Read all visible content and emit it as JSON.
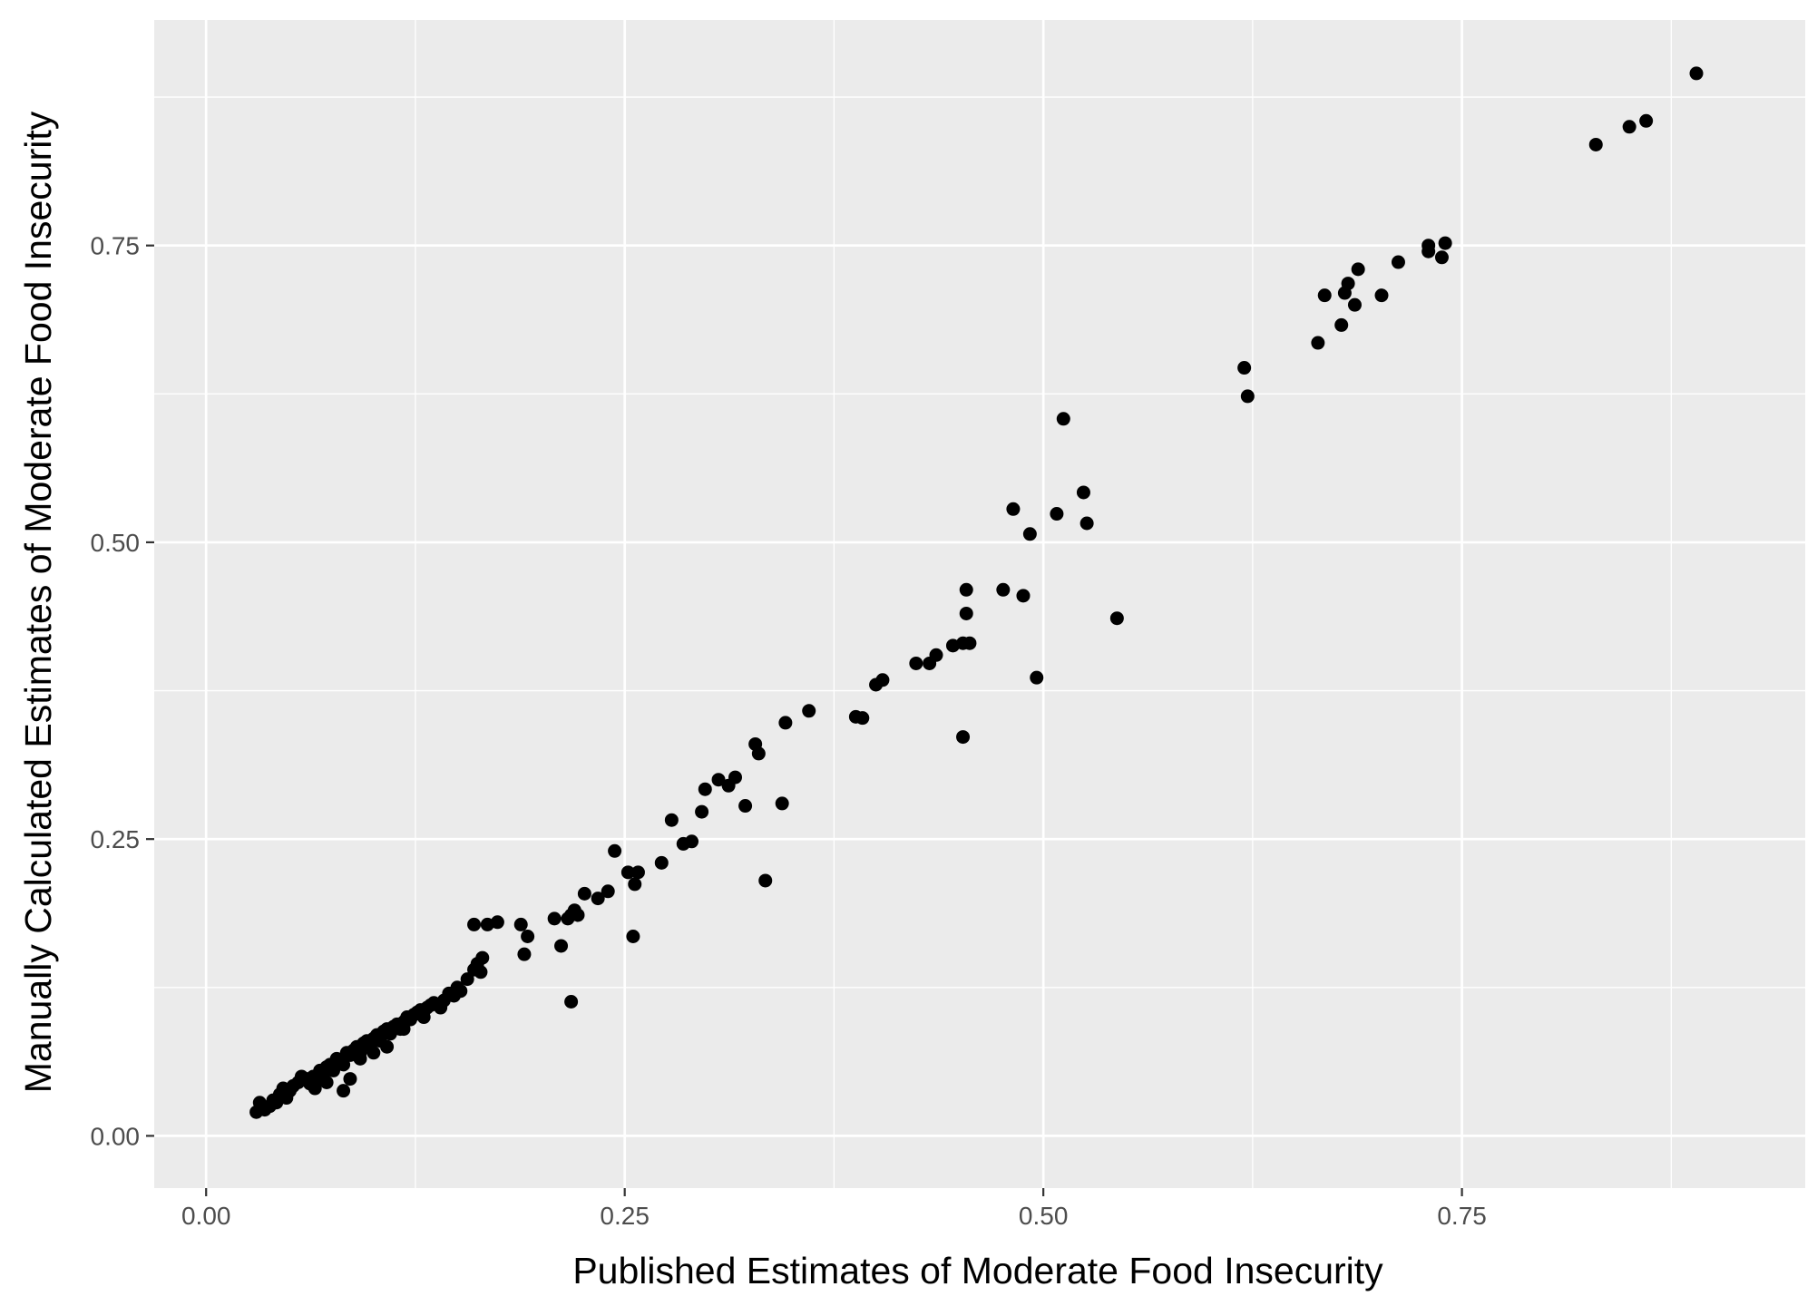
{
  "chart_data": {
    "type": "scatter",
    "xlabel": "Published Estimates of Moderate Food Insecurity",
    "ylabel": "Manually Calculated Estimates of Moderate Food Insecurity",
    "xlim": [
      -0.031,
      0.955
    ],
    "ylim": [
      -0.044,
      0.94
    ],
    "x_ticks": [
      0.0,
      0.25,
      0.5,
      0.75
    ],
    "x_tick_labels": [
      "0.00",
      "0.25",
      "0.50",
      "0.75"
    ],
    "y_ticks": [
      0.0,
      0.25,
      0.5,
      0.75
    ],
    "y_tick_labels": [
      "0.00",
      "0.25",
      "0.50",
      "0.75"
    ],
    "grid": true,
    "colors": {
      "panel": "#ebebeb",
      "grid": "#ffffff",
      "point": "#000000"
    },
    "points": [
      [
        0.03,
        0.02
      ],
      [
        0.032,
        0.028
      ],
      [
        0.035,
        0.022
      ],
      [
        0.038,
        0.025
      ],
      [
        0.04,
        0.03
      ],
      [
        0.042,
        0.028
      ],
      [
        0.044,
        0.035
      ],
      [
        0.046,
        0.04
      ],
      [
        0.048,
        0.032
      ],
      [
        0.05,
        0.038
      ],
      [
        0.052,
        0.042
      ],
      [
        0.055,
        0.045
      ],
      [
        0.057,
        0.05
      ],
      [
        0.06,
        0.048
      ],
      [
        0.062,
        0.044
      ],
      [
        0.064,
        0.05
      ],
      [
        0.066,
        0.046
      ],
      [
        0.068,
        0.055
      ],
      [
        0.07,
        0.052
      ],
      [
        0.072,
        0.058
      ],
      [
        0.074,
        0.06
      ],
      [
        0.076,
        0.055
      ],
      [
        0.078,
        0.065
      ],
      [
        0.08,
        0.062
      ],
      [
        0.082,
        0.06
      ],
      [
        0.084,
        0.07
      ],
      [
        0.086,
        0.068
      ],
      [
        0.088,
        0.072
      ],
      [
        0.09,
        0.075
      ],
      [
        0.092,
        0.07
      ],
      [
        0.094,
        0.078
      ],
      [
        0.096,
        0.08
      ],
      [
        0.098,
        0.076
      ],
      [
        0.1,
        0.082
      ],
      [
        0.102,
        0.085
      ],
      [
        0.104,
        0.08
      ],
      [
        0.106,
        0.088
      ],
      [
        0.108,
        0.09
      ],
      [
        0.11,
        0.086
      ],
      [
        0.112,
        0.092
      ],
      [
        0.114,
        0.094
      ],
      [
        0.116,
        0.09
      ],
      [
        0.118,
        0.096
      ],
      [
        0.12,
        0.1
      ],
      [
        0.122,
        0.098
      ],
      [
        0.124,
        0.102
      ],
      [
        0.126,
        0.104
      ],
      [
        0.128,
        0.106
      ],
      [
        0.13,
        0.1
      ],
      [
        0.132,
        0.108
      ],
      [
        0.134,
        0.11
      ],
      [
        0.136,
        0.112
      ],
      [
        0.14,
        0.108
      ],
      [
        0.142,
        0.114
      ],
      [
        0.145,
        0.12
      ],
      [
        0.148,
        0.118
      ],
      [
        0.15,
        0.125
      ],
      [
        0.152,
        0.122
      ],
      [
        0.156,
        0.132
      ],
      [
        0.16,
        0.14
      ],
      [
        0.162,
        0.145
      ],
      [
        0.164,
        0.138
      ],
      [
        0.165,
        0.15
      ],
      [
        0.072,
        0.045
      ],
      [
        0.065,
        0.04
      ],
      [
        0.082,
        0.038
      ],
      [
        0.086,
        0.048
      ],
      [
        0.108,
        0.075
      ],
      [
        0.092,
        0.065
      ],
      [
        0.1,
        0.07
      ],
      [
        0.118,
        0.09
      ],
      [
        0.13,
        0.105
      ],
      [
        0.16,
        0.178
      ],
      [
        0.168,
        0.178
      ],
      [
        0.174,
        0.18
      ],
      [
        0.188,
        0.178
      ],
      [
        0.19,
        0.153
      ],
      [
        0.192,
        0.168
      ],
      [
        0.208,
        0.183
      ],
      [
        0.212,
        0.16
      ],
      [
        0.216,
        0.183
      ],
      [
        0.218,
        0.186
      ],
      [
        0.22,
        0.19
      ],
      [
        0.222,
        0.186
      ],
      [
        0.218,
        0.113
      ],
      [
        0.226,
        0.204
      ],
      [
        0.234,
        0.2
      ],
      [
        0.24,
        0.206
      ],
      [
        0.244,
        0.24
      ],
      [
        0.252,
        0.222
      ],
      [
        0.255,
        0.168
      ],
      [
        0.256,
        0.212
      ],
      [
        0.258,
        0.222
      ],
      [
        0.272,
        0.23
      ],
      [
        0.278,
        0.266
      ],
      [
        0.285,
        0.246
      ],
      [
        0.29,
        0.248
      ],
      [
        0.296,
        0.273
      ],
      [
        0.298,
        0.292
      ],
      [
        0.306,
        0.3
      ],
      [
        0.312,
        0.295
      ],
      [
        0.316,
        0.302
      ],
      [
        0.322,
        0.278
      ],
      [
        0.328,
        0.33
      ],
      [
        0.33,
        0.322
      ],
      [
        0.334,
        0.215
      ],
      [
        0.344,
        0.28
      ],
      [
        0.346,
        0.348
      ],
      [
        0.36,
        0.358
      ],
      [
        0.388,
        0.353
      ],
      [
        0.392,
        0.352
      ],
      [
        0.4,
        0.38
      ],
      [
        0.404,
        0.384
      ],
      [
        0.424,
        0.398
      ],
      [
        0.432,
        0.398
      ],
      [
        0.436,
        0.405
      ],
      [
        0.446,
        0.413
      ],
      [
        0.452,
        0.415
      ],
      [
        0.456,
        0.415
      ],
      [
        0.452,
        0.336
      ],
      [
        0.454,
        0.44
      ],
      [
        0.454,
        0.46
      ],
      [
        0.476,
        0.46
      ],
      [
        0.482,
        0.528
      ],
      [
        0.488,
        0.455
      ],
      [
        0.492,
        0.507
      ],
      [
        0.496,
        0.386
      ],
      [
        0.508,
        0.524
      ],
      [
        0.512,
        0.604
      ],
      [
        0.524,
        0.542
      ],
      [
        0.526,
        0.516
      ],
      [
        0.544,
        0.436
      ],
      [
        0.62,
        0.647
      ],
      [
        0.622,
        0.623
      ],
      [
        0.664,
        0.668
      ],
      [
        0.668,
        0.708
      ],
      [
        0.678,
        0.683
      ],
      [
        0.68,
        0.71
      ],
      [
        0.682,
        0.718
      ],
      [
        0.686,
        0.7
      ],
      [
        0.688,
        0.73
      ],
      [
        0.702,
        0.708
      ],
      [
        0.712,
        0.736
      ],
      [
        0.73,
        0.745
      ],
      [
        0.73,
        0.75
      ],
      [
        0.738,
        0.74
      ],
      [
        0.74,
        0.752
      ],
      [
        0.83,
        0.835
      ],
      [
        0.85,
        0.85
      ],
      [
        0.86,
        0.855
      ],
      [
        0.89,
        0.895
      ]
    ]
  }
}
